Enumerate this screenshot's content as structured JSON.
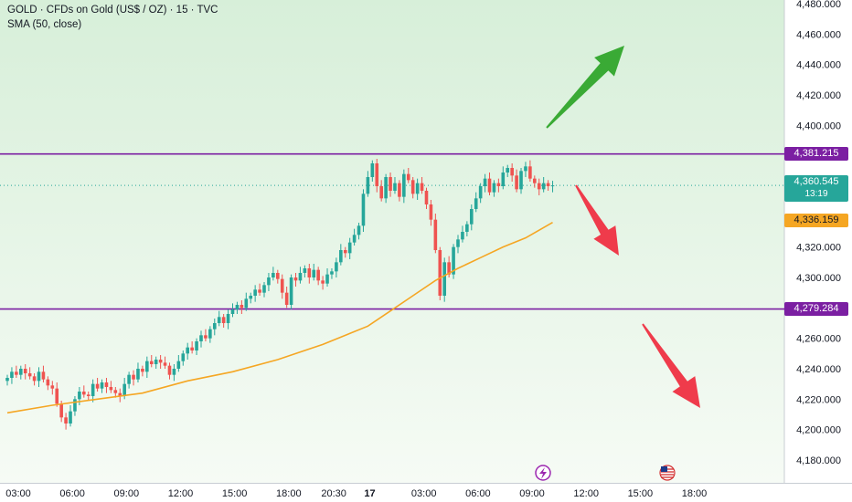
{
  "header": {
    "symbol_line": "GOLD · CFDs on Gold (US$ / OZ) · 15 · TVC",
    "indicator_line": "SMA (50, close)"
  },
  "colors": {
    "up": "#26a69a",
    "down": "#ef5350",
    "sma": "#f5a623",
    "level": "#7b1fa2",
    "bg_top": "#d7efd9",
    "bg_bottom": "#f6fbf5",
    "arrow_up": "#3aaa35",
    "arrow_down": "#ef3b4b",
    "axis_text": "#131722"
  },
  "price_tags": {
    "resistance": "4,381.215",
    "support": "4,279.284",
    "last_price": "4,360.545",
    "countdown": "13:19",
    "sma_value": "4,336.159"
  },
  "chart_data": {
    "type": "candlestick",
    "title": "GOLD · CFDs on Gold (US$ / OZ) · 15 · TVC",
    "indicator": "SMA (50, close)",
    "ylim": [
      4170,
      4490
    ],
    "y_ticks": [
      "4,180.000",
      "4,200.000",
      "4,220.000",
      "4,240.000",
      "4,260.000",
      "4,280.000",
      "4,300.000",
      "4,320.000",
      "4,340.000",
      "4,360.000",
      "4,380.000",
      "4,400.000",
      "4,420.000",
      "4,440.000",
      "4,460.000",
      "4,480.000"
    ],
    "y_tick_values": [
      4180,
      4200,
      4220,
      4240,
      4260,
      4280,
      4300,
      4320,
      4340,
      4360,
      4380,
      4400,
      4420,
      4440,
      4460,
      4480
    ],
    "x_ticks": [
      "03:00",
      "06:00",
      "09:00",
      "12:00",
      "15:00",
      "18:00",
      "20:30",
      "17",
      "03:00",
      "06:00",
      "09:00",
      "12:00",
      "15:00",
      "18:00"
    ],
    "x_tick_bar_index": [
      0,
      12,
      24,
      36,
      48,
      60,
      70,
      78,
      90,
      102,
      114,
      126,
      138,
      150
    ],
    "bar_interval": "15m",
    "horizontal_levels": [
      4381.215,
      4279.284
    ],
    "last_price": 4360.545,
    "sma_last": 4336.159,
    "closes": [
      4234,
      4238,
      4236,
      4240,
      4237,
      4235,
      4232,
      4238,
      4233,
      4229,
      4227,
      4217,
      4208,
      4204,
      4212,
      4220,
      4225,
      4223,
      4222,
      4230,
      4227,
      4231,
      4228,
      4226,
      4224,
      4222,
      4230,
      4236,
      4233,
      4240,
      4238,
      4245,
      4243,
      4246,
      4244,
      4242,
      4236,
      4240,
      4245,
      4250,
      4254,
      4252,
      4258,
      4262,
      4260,
      4266,
      4270,
      4274,
      4270,
      4276,
      4279,
      4282,
      4280,
      4286,
      4288,
      4292,
      4290,
      4295,
      4300,
      4303,
      4299,
      4290,
      4282,
      4300,
      4298,
      4303,
      4306,
      4300,
      4305,
      4298,
      4296,
      4302,
      4304,
      4310,
      4318,
      4316,
      4323,
      4328,
      4334,
      4355,
      4366,
      4375,
      4360,
      4352,
      4366,
      4357,
      4362,
      4353,
      4368,
      4364,
      4355,
      4362,
      4357,
      4348,
      4338,
      4318,
      4288,
      4310,
      4302,
      4320,
      4325,
      4330,
      4335,
      4345,
      4352,
      4360,
      4365,
      4356,
      4362,
      4360,
      4369,
      4372,
      4367,
      4358,
      4370,
      4373,
      4365,
      4362,
      4358,
      4362,
      4360,
      4360.545
    ],
    "sma_points": [
      [
        0,
        4211
      ],
      [
        10,
        4216
      ],
      [
        20,
        4220
      ],
      [
        30,
        4224
      ],
      [
        40,
        4232
      ],
      [
        50,
        4238
      ],
      [
        60,
        4246
      ],
      [
        70,
        4256
      ],
      [
        80,
        4268
      ],
      [
        85,
        4278
      ],
      [
        90,
        4288
      ],
      [
        95,
        4298
      ],
      [
        100,
        4306
      ],
      [
        105,
        4313
      ],
      [
        110,
        4320
      ],
      [
        115,
        4326
      ],
      [
        121,
        4336.159
      ]
    ]
  },
  "annotations": [
    "arrow-up",
    "arrow-down-short",
    "arrow-down-long"
  ],
  "event_icons": [
    "lightning-icon",
    "us-flag-icon"
  ]
}
